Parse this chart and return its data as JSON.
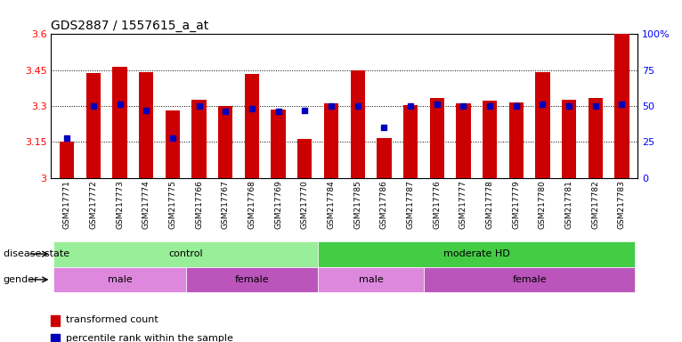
{
  "title": "GDS2887 / 1557615_a_at",
  "samples": [
    "GSM217771",
    "GSM217772",
    "GSM217773",
    "GSM217774",
    "GSM217775",
    "GSM217766",
    "GSM217767",
    "GSM217768",
    "GSM217769",
    "GSM217770",
    "GSM217784",
    "GSM217785",
    "GSM217786",
    "GSM217787",
    "GSM217776",
    "GSM217777",
    "GSM217778",
    "GSM217779",
    "GSM217780",
    "GSM217781",
    "GSM217782",
    "GSM217783"
  ],
  "bar_values": [
    3.152,
    3.438,
    3.465,
    3.443,
    3.283,
    3.325,
    3.3,
    3.435,
    3.285,
    3.163,
    3.313,
    3.448,
    3.168,
    3.305,
    3.333,
    3.313,
    3.323,
    3.315,
    3.44,
    3.328,
    3.335,
    3.6
  ],
  "percentile_values": [
    28,
    50,
    51,
    47,
    28,
    50,
    46,
    48,
    46,
    47,
    50,
    50,
    35,
    50,
    51,
    50,
    50,
    50,
    51,
    50,
    50,
    51
  ],
  "ylim": [
    3.0,
    3.6
  ],
  "yticks": [
    3.0,
    3.15,
    3.3,
    3.45,
    3.6
  ],
  "ytick_labels": [
    "3",
    "3.15",
    "3.3",
    "3.45",
    "3.6"
  ],
  "right_yticks": [
    0,
    25,
    50,
    75,
    100
  ],
  "right_ytick_labels": [
    "0",
    "25",
    "50",
    "75",
    "100%"
  ],
  "bar_color": "#CC0000",
  "percentile_color": "#0000BB",
  "disease_state_groups": [
    {
      "label": "control",
      "start": 0,
      "end": 10,
      "color": "#99EE99"
    },
    {
      "label": "moderate HD",
      "start": 10,
      "end": 22,
      "color": "#44CC44"
    }
  ],
  "gender_groups": [
    {
      "label": "male",
      "start": 0,
      "end": 5,
      "color": "#DD88DD"
    },
    {
      "label": "female",
      "start": 5,
      "end": 10,
      "color": "#BB55BB"
    },
    {
      "label": "male",
      "start": 10,
      "end": 14,
      "color": "#DD88DD"
    },
    {
      "label": "female",
      "start": 14,
      "end": 22,
      "color": "#BB55BB"
    }
  ],
  "legend_items": [
    {
      "label": "transformed count",
      "color": "#CC0000"
    },
    {
      "label": "percentile rank within the sample",
      "color": "#0000BB"
    }
  ],
  "disease_state_label": "disease state",
  "gender_label": "gender",
  "bar_width": 0.55
}
